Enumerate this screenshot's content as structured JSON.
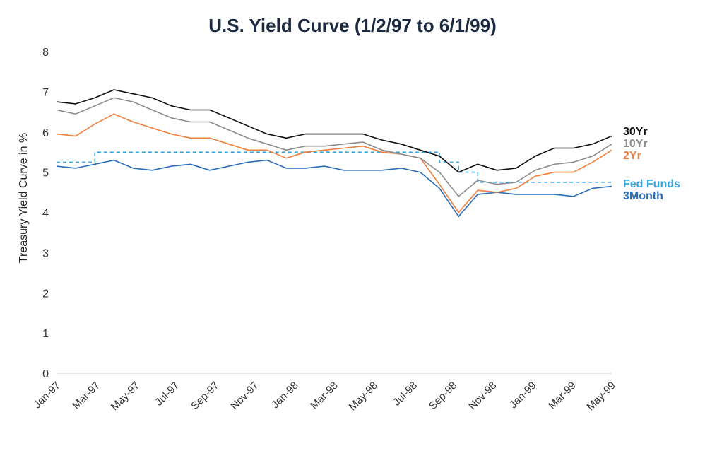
{
  "chart_data": {
    "type": "line",
    "title": "U.S. Yield Curve (1/2/97 to 6/1/99)",
    "ylabel": "Treasury Yield Curve in %",
    "xlabel": "",
    "ylim": [
      0,
      8
    ],
    "yticks": [
      0,
      1,
      2,
      3,
      4,
      5,
      6,
      7,
      8
    ],
    "x_tick_labels": [
      "Jan-97",
      "Mar-97",
      "May-97",
      "Jul-97",
      "Sep-97",
      "Nov-97",
      "Jan-98",
      "Mar-98",
      "May-98",
      "Jul-98",
      "Sep-98",
      "Nov-98",
      "Jan-99",
      "Mar-99",
      "May-99"
    ],
    "legend": "right-inline",
    "grid": false,
    "x": [
      "Jan-97",
      "Feb-97",
      "Mar-97",
      "Apr-97",
      "May-97",
      "Jun-97",
      "Jul-97",
      "Aug-97",
      "Sep-97",
      "Oct-97",
      "Nov-97",
      "Dec-97",
      "Jan-98",
      "Feb-98",
      "Mar-98",
      "Apr-98",
      "May-98",
      "Jun-98",
      "Jul-98",
      "Aug-98",
      "Sep-98",
      "Oct-98",
      "Nov-98",
      "Dec-98",
      "Jan-99",
      "Feb-99",
      "Mar-99",
      "Apr-99",
      "May-99",
      "Jun-99"
    ],
    "series": [
      {
        "name": "30Yr",
        "color": "#111111",
        "dash": false,
        "values": [
          6.75,
          6.7,
          6.85,
          7.05,
          6.95,
          6.85,
          6.65,
          6.55,
          6.55,
          6.35,
          6.15,
          5.95,
          5.85,
          5.95,
          5.95,
          5.95,
          5.95,
          5.8,
          5.7,
          5.55,
          5.4,
          5.0,
          5.2,
          5.05,
          5.1,
          5.4,
          5.6,
          5.6,
          5.7,
          5.9
        ]
      },
      {
        "name": "10Yr",
        "color": "#8c8c8c",
        "dash": false,
        "values": [
          6.55,
          6.45,
          6.65,
          6.85,
          6.75,
          6.55,
          6.35,
          6.25,
          6.25,
          6.05,
          5.85,
          5.7,
          5.55,
          5.65,
          5.65,
          5.7,
          5.75,
          5.55,
          5.45,
          5.35,
          5.0,
          4.4,
          4.8,
          4.7,
          4.75,
          5.05,
          5.2,
          5.25,
          5.4,
          5.7
        ]
      },
      {
        "name": "2Yr",
        "color": "#f07f3c",
        "dash": false,
        "values": [
          5.95,
          5.9,
          6.2,
          6.45,
          6.25,
          6.1,
          5.95,
          5.85,
          5.85,
          5.7,
          5.55,
          5.55,
          5.35,
          5.5,
          5.55,
          5.6,
          5.65,
          5.5,
          5.45,
          5.35,
          4.7,
          4.0,
          4.55,
          4.5,
          4.6,
          4.9,
          5.0,
          5.0,
          5.25,
          5.55
        ]
      },
      {
        "name": "Fed Funds",
        "color": "#3aa6dd",
        "dash": true,
        "values": [
          5.25,
          5.25,
          5.5,
          5.5,
          5.5,
          5.5,
          5.5,
          5.5,
          5.5,
          5.5,
          5.5,
          5.5,
          5.5,
          5.5,
          5.5,
          5.5,
          5.5,
          5.5,
          5.5,
          5.5,
          5.25,
          5.0,
          4.75,
          4.75,
          4.75,
          4.75,
          4.75,
          4.75,
          4.75,
          4.75
        ]
      },
      {
        "name": "3Month",
        "color": "#2b6cb8",
        "dash": false,
        "values": [
          5.15,
          5.1,
          5.2,
          5.3,
          5.1,
          5.05,
          5.15,
          5.2,
          5.05,
          5.15,
          5.25,
          5.3,
          5.1,
          5.1,
          5.15,
          5.05,
          5.05,
          5.05,
          5.1,
          5.0,
          4.6,
          3.9,
          4.45,
          4.5,
          4.45,
          4.45,
          4.45,
          4.4,
          4.6,
          4.65
        ]
      }
    ]
  }
}
